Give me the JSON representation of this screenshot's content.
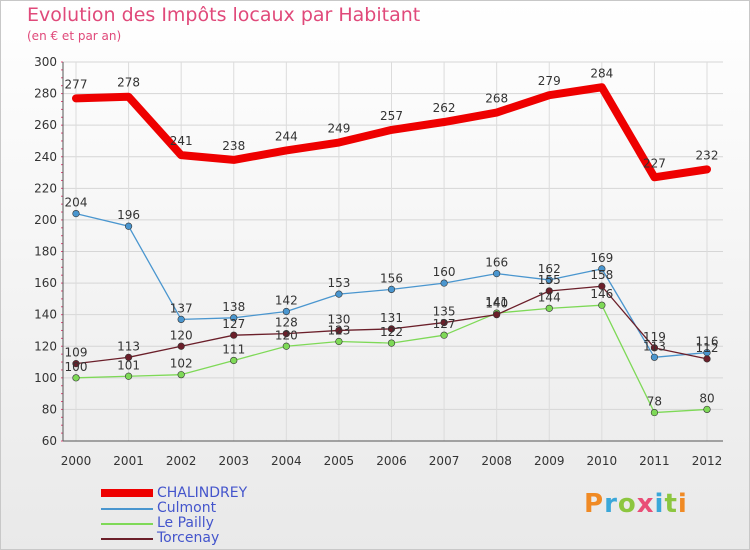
{
  "title": "Evolution des Impôts locaux par Habitant",
  "subtitle": "(en € et par an)",
  "brand": {
    "letters": [
      "P",
      "r",
      "o",
      "x",
      "i",
      "t",
      "i"
    ],
    "colors": [
      "#f08a24",
      "#3aa7d9",
      "#8cc63f",
      "#e94e77",
      "#3aa7d9",
      "#8cc63f",
      "#f08a24"
    ]
  },
  "chart_data": {
    "type": "line",
    "title": "Evolution des Impôts locaux par Habitant",
    "subtitle": "(en € et par an)",
    "xlabel": "",
    "ylabel": "",
    "x": [
      "2000",
      "2001",
      "2002",
      "2003",
      "2004",
      "2005",
      "2006",
      "2007",
      "2008",
      "2009",
      "2010",
      "2011",
      "2012"
    ],
    "ylim": [
      60,
      300
    ],
    "yticks": [
      60,
      80,
      100,
      120,
      140,
      160,
      180,
      200,
      220,
      240,
      260,
      280,
      300
    ],
    "grid": true,
    "legend_position": "bottom-left",
    "series": [
      {
        "name": "CHALINDREY",
        "values": [
          277,
          278,
          241,
          238,
          244,
          249,
          257,
          262,
          268,
          279,
          284,
          227,
          232
        ],
        "color": "#ee0000",
        "emphasis": true
      },
      {
        "name": "Culmont",
        "values": [
          204,
          196,
          137,
          138,
          142,
          153,
          156,
          160,
          166,
          162,
          169,
          113,
          116
        ],
        "color": "#4a96cf",
        "emphasis": false
      },
      {
        "name": "Le Pailly",
        "values": [
          100,
          101,
          102,
          111,
          120,
          123,
          122,
          127,
          141,
          144,
          146,
          78,
          80
        ],
        "color": "#7ed957",
        "emphasis": false
      },
      {
        "name": "Torcenay",
        "values": [
          109,
          113,
          120,
          127,
          128,
          130,
          131,
          135,
          140,
          155,
          158,
          119,
          112
        ],
        "color": "#6b1f2a",
        "emphasis": false
      }
    ],
    "labeled_series": [
      "CHALINDREY",
      "Culmont",
      "Le Pailly",
      "Torcenay"
    ]
  }
}
